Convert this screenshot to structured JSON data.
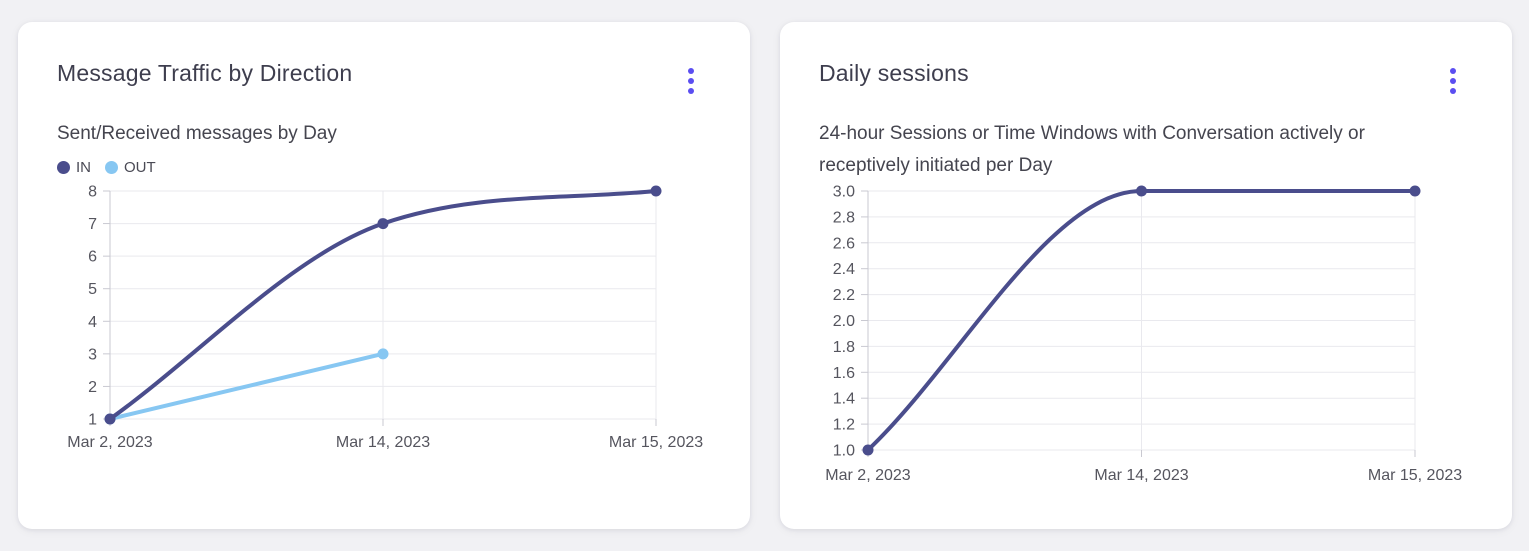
{
  "colors": {
    "page_bg": "#f1f1f4",
    "card_bg": "#ffffff",
    "accent_menu": "#5b4ef1",
    "title_text": "#3e3e4e",
    "subtitle_text": "#45454f",
    "tick_text": "#55555e",
    "grid_line": "#e9e9ee",
    "axis_line": "#c9c9d1",
    "series_in": "#4a4d8c",
    "series_out": "#87c7f2"
  },
  "cards": [
    {
      "title": "Message Traffic by Direction",
      "subtitle": "Sent/Received messages by Day",
      "menu_icon": "kebab-vertical"
    },
    {
      "title": "Daily sessions",
      "subtitle": "24-hour Sessions or Time Windows with Conversation actively or receptively initiated per Day",
      "menu_icon": "kebab-vertical"
    }
  ],
  "chart_data": [
    {
      "type": "line",
      "title": "Message Traffic by Direction",
      "subtitle": "Sent/Received messages by Day",
      "categories": [
        "Mar 2, 2023",
        "Mar 14, 2023",
        "Mar 15, 2023"
      ],
      "series": [
        {
          "name": "IN",
          "values": [
            1,
            7,
            8
          ],
          "color": "#4a4d8c"
        },
        {
          "name": "OUT",
          "values": [
            1,
            3,
            null
          ],
          "color": "#87c7f2"
        }
      ],
      "yticks": [
        "1",
        "2",
        "3",
        "4",
        "5",
        "6",
        "7",
        "8"
      ],
      "ylim": [
        1,
        8
      ],
      "xlabel": "",
      "ylabel": "",
      "grid": true,
      "legend_position": "top-left",
      "curve": "smooth"
    },
    {
      "type": "line",
      "title": "Daily sessions",
      "subtitle": "24-hour Sessions or Time Windows with Conversation actively or receptively initiated per Day",
      "categories": [
        "Mar 2, 2023",
        "Mar 14, 2023",
        "Mar 15, 2023"
      ],
      "series": [
        {
          "name": "Daily sessions",
          "values": [
            1.0,
            3.0,
            3.0
          ],
          "color": "#4a4d8c"
        }
      ],
      "yticks": [
        "1.0",
        "1.2",
        "1.4",
        "1.6",
        "1.8",
        "2.0",
        "2.2",
        "2.4",
        "2.6",
        "2.8",
        "3.0"
      ],
      "ylim": [
        1.0,
        3.0
      ],
      "xlabel": "",
      "ylabel": "",
      "grid": true,
      "legend_position": "none",
      "curve": "smooth"
    }
  ]
}
